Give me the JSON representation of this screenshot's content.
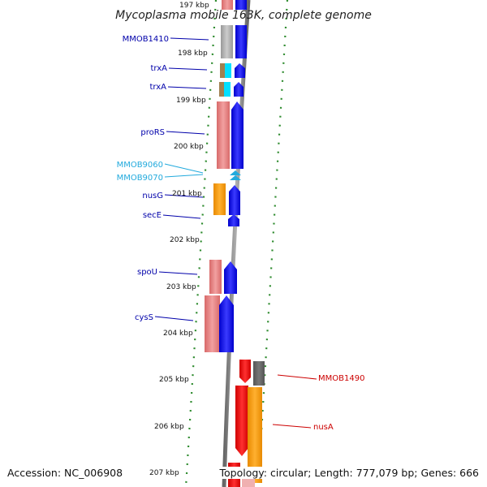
{
  "title": "Mycoplasma mobile 163K, complete genome",
  "footer": {
    "accession": "Accession: NC_006908",
    "topology": "Topology: circular; Length: 777,079 bp; Genes: 666"
  },
  "colors": {
    "background": "#ffffff",
    "backbone": "#8a8a8a",
    "tick_dots": "#2e8b2e",
    "label_blue": "#0000aa",
    "label_cyan": "#22aadd",
    "label_red": "#cc0000",
    "cds_blue": "#0000ff",
    "cds_red": "#ff0000",
    "cog_pink": "#e88080",
    "cog_orange": "#ff9900",
    "cog_gray": "#aaaaaa"
  },
  "ticks": [
    "197 kbp",
    "198 kbp",
    "199 kbp",
    "200 kbp",
    "201 kbp",
    "202 kbp",
    "203 kbp",
    "204 kbp",
    "205 kbp",
    "206 kbp",
    "207 kbp"
  ],
  "genes_left": [
    {
      "label": "MMOB1410",
      "color": "#0000aa"
    },
    {
      "label": "trxA",
      "color": "#0000aa"
    },
    {
      "label": "trxA",
      "color": "#0000aa"
    },
    {
      "label": "proRS",
      "color": "#0000aa"
    },
    {
      "label": "MMOB9060",
      "color": "#22aadd"
    },
    {
      "label": "MMOB9070",
      "color": "#22aadd"
    },
    {
      "label": "nusG",
      "color": "#0000aa"
    },
    {
      "label": "secE",
      "color": "#0000aa"
    },
    {
      "label": "spoU",
      "color": "#0000aa"
    },
    {
      "label": "cysS",
      "color": "#0000aa"
    }
  ],
  "genes_right": [
    {
      "label": "MMOB1490",
      "color": "#cc0000"
    },
    {
      "label": "nusA",
      "color": "#cc0000"
    }
  ]
}
